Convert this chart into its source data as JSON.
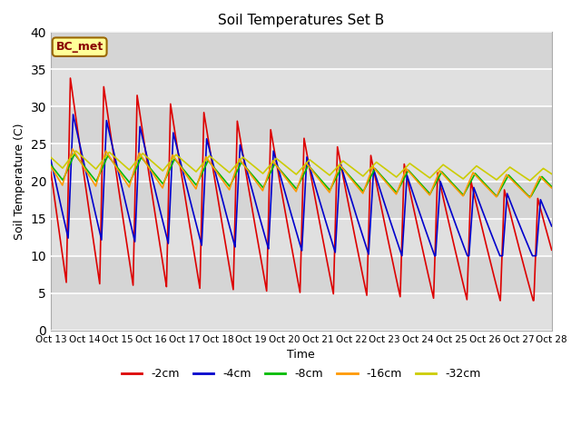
{
  "title": "Soil Temperatures Set B",
  "xlabel": "Time",
  "ylabel": "Soil Temperature (C)",
  "annotation": "BC_met",
  "ylim": [
    0,
    40
  ],
  "xlim": [
    0,
    360
  ],
  "background_color": "#e0e0e0",
  "fig_background": "#ffffff",
  "series": {
    "-2cm": {
      "color": "#dd0000",
      "lw": 1.2
    },
    "-4cm": {
      "color": "#0000cc",
      "lw": 1.2
    },
    "-8cm": {
      "color": "#00bb00",
      "lw": 1.2
    },
    "-16cm": {
      "color": "#ff9900",
      "lw": 1.2
    },
    "-32cm": {
      "color": "#cccc00",
      "lw": 1.2
    }
  },
  "xtick_labels": [
    "Oct 13",
    "Oct 14",
    "Oct 15",
    "Oct 16",
    "Oct 17",
    "Oct 18",
    "Oct 19",
    "Oct 20",
    "Oct 21",
    "Oct 22",
    "Oct 23",
    "Oct 24",
    "Oct 25",
    "Oct 26",
    "Oct 27",
    "Oct 28"
  ],
  "xtick_positions": [
    0,
    24,
    48,
    72,
    96,
    120,
    144,
    168,
    192,
    216,
    240,
    264,
    288,
    312,
    336,
    360
  ],
  "ytick_positions": [
    0,
    5,
    10,
    15,
    20,
    25,
    30,
    35,
    40
  ],
  "grid_color": "#ffffff",
  "n_points": 3601
}
